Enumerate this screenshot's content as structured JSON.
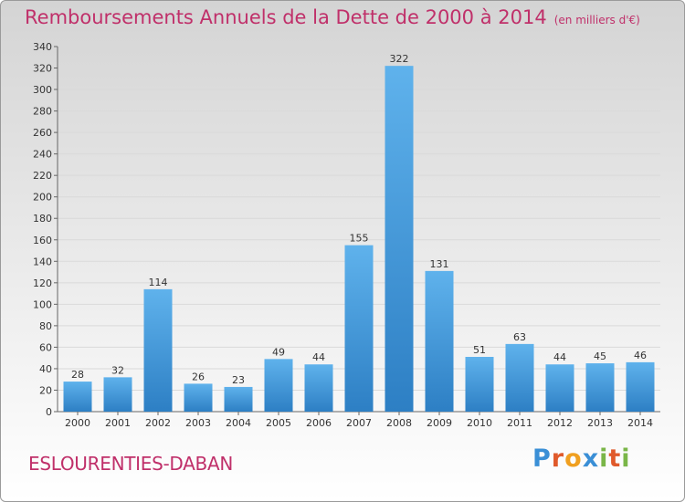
{
  "title": "Remboursements Annuels de la Dette de 2000 à 2014",
  "unit": "(en milliers d'€)",
  "town": "ESLOURENTIES-DABAN",
  "logo": {
    "text": "Proxiti",
    "letters": [
      {
        "ch": "P",
        "color": "#3a8fd6"
      },
      {
        "ch": "r",
        "color": "#e05a2b"
      },
      {
        "ch": "o",
        "color": "#f0a020"
      },
      {
        "ch": "x",
        "color": "#3a8fd6"
      },
      {
        "ch": "i",
        "color": "#7ab648"
      },
      {
        "ch": "t",
        "color": "#e05a2b"
      },
      {
        "ch": "i",
        "color": "#7ab648"
      }
    ]
  },
  "chart_data": {
    "type": "bar",
    "categories": [
      "2000",
      "2001",
      "2002",
      "2003",
      "2004",
      "2005",
      "2006",
      "2007",
      "2008",
      "2009",
      "2010",
      "2011",
      "2012",
      "2013",
      "2014"
    ],
    "values": [
      28,
      32,
      114,
      26,
      23,
      49,
      44,
      155,
      322,
      131,
      51,
      63,
      44,
      45,
      46
    ],
    "ylim": [
      0,
      340
    ],
    "yticks": [
      0,
      20,
      40,
      60,
      80,
      100,
      120,
      140,
      160,
      180,
      200,
      220,
      240,
      260,
      280,
      300,
      320,
      340
    ],
    "grid": true,
    "bar_color": "#4a9fe0"
  }
}
